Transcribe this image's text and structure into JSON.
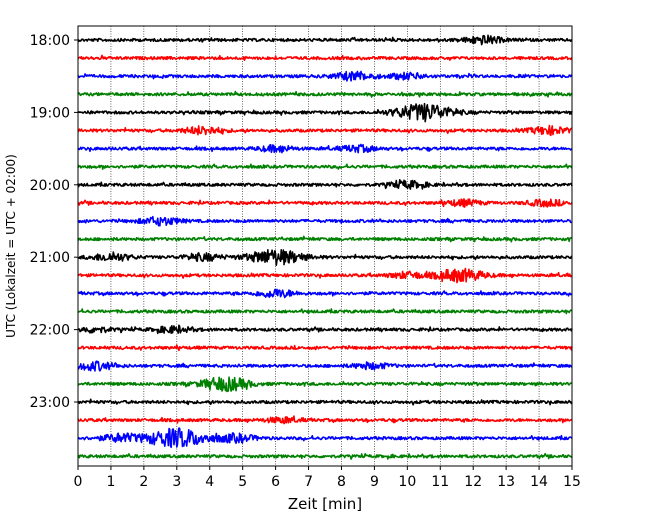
{
  "chart_data": {
    "type": "line",
    "title": "",
    "xlabel": "Zeit  [min]",
    "ylabel": "UTC (Lokalzeit = UTC + 02:00)",
    "xlim": [
      0,
      15
    ],
    "x_ticks": [
      0,
      1,
      2,
      3,
      4,
      5,
      6,
      7,
      8,
      9,
      10,
      11,
      12,
      13,
      14,
      15
    ],
    "x_tick_labels": [
      "0",
      "1",
      "2",
      "3",
      "4",
      "5",
      "6",
      "7",
      "8",
      "9",
      "10",
      "11",
      "12",
      "13",
      "14",
      "15"
    ],
    "y_tick_labels": [
      "18:00",
      "19:00",
      "20:00",
      "21:00",
      "22:00",
      "23:00"
    ],
    "grid": "vertical dotted",
    "trace_minutes": 15,
    "trace_colors": [
      "#000000",
      "#ff0000",
      "#0000ff",
      "#008000"
    ],
    "traces": [
      {
        "label": "18:00",
        "color": "#000000",
        "bursts": [
          {
            "t": 12.3,
            "amp": 0.45
          }
        ]
      },
      {
        "label": "18:15",
        "color": "#ff0000",
        "bursts": []
      },
      {
        "label": "18:30",
        "color": "#0000ff",
        "bursts": [
          {
            "t": 8.4,
            "amp": 0.5
          },
          {
            "t": 10.0,
            "amp": 0.35
          }
        ]
      },
      {
        "label": "18:45",
        "color": "#008000",
        "bursts": []
      },
      {
        "label": "19:00",
        "color": "#000000",
        "bursts": [
          {
            "t": 10.5,
            "amp": 1.0
          }
        ]
      },
      {
        "label": "19:15",
        "color": "#ff0000",
        "bursts": [
          {
            "t": 3.8,
            "amp": 0.45
          },
          {
            "t": 14.3,
            "amp": 0.45
          }
        ]
      },
      {
        "label": "19:30",
        "color": "#0000ff",
        "bursts": [
          {
            "t": 6.0,
            "amp": 0.35
          },
          {
            "t": 8.5,
            "amp": 0.35
          }
        ]
      },
      {
        "label": "19:45",
        "color": "#008000",
        "bursts": []
      },
      {
        "label": "20:00",
        "color": "#000000",
        "bursts": [
          {
            "t": 10.0,
            "amp": 0.4
          }
        ]
      },
      {
        "label": "20:15",
        "color": "#ff0000",
        "bursts": [
          {
            "t": 11.7,
            "amp": 0.35
          },
          {
            "t": 14.2,
            "amp": 0.35
          }
        ]
      },
      {
        "label": "20:30",
        "color": "#0000ff",
        "bursts": [
          {
            "t": 2.5,
            "amp": 0.45
          }
        ]
      },
      {
        "label": "20:45",
        "color": "#008000",
        "bursts": []
      },
      {
        "label": "21:00",
        "color": "#000000",
        "bursts": [
          {
            "t": 6.0,
            "amp": 0.9
          },
          {
            "t": 3.8,
            "amp": 0.4
          },
          {
            "t": 1.0,
            "amp": 0.45
          }
        ]
      },
      {
        "label": "21:15",
        "color": "#ff0000",
        "bursts": [
          {
            "t": 11.6,
            "amp": 0.75
          },
          {
            "t": 10.0,
            "amp": 0.35
          }
        ]
      },
      {
        "label": "21:30",
        "color": "#0000ff",
        "bursts": [
          {
            "t": 6.0,
            "amp": 0.45
          }
        ]
      },
      {
        "label": "21:45",
        "color": "#008000",
        "bursts": []
      },
      {
        "label": "22:00",
        "color": "#000000",
        "bursts": [
          {
            "t": 2.9,
            "amp": 0.35
          },
          {
            "t": 0.5,
            "amp": 0.3
          }
        ]
      },
      {
        "label": "22:15",
        "color": "#ff0000",
        "bursts": []
      },
      {
        "label": "22:30",
        "color": "#0000ff",
        "bursts": [
          {
            "t": 0.5,
            "amp": 0.5
          },
          {
            "t": 8.9,
            "amp": 0.35
          }
        ]
      },
      {
        "label": "22:45",
        "color": "#008000",
        "bursts": [
          {
            "t": 4.3,
            "amp": 0.6
          },
          {
            "t": 4.8,
            "amp": 0.35
          }
        ]
      },
      {
        "label": "23:00",
        "color": "#000000",
        "bursts": []
      },
      {
        "label": "23:15",
        "color": "#ff0000",
        "bursts": [
          {
            "t": 6.2,
            "amp": 0.3
          }
        ]
      },
      {
        "label": "23:30",
        "color": "#0000ff",
        "bursts": [
          {
            "t": 3.0,
            "amp": 1.1
          },
          {
            "t": 1.3,
            "amp": 0.45
          },
          {
            "t": 4.8,
            "amp": 0.45
          }
        ]
      },
      {
        "label": "23:45",
        "color": "#008000",
        "bursts": []
      }
    ]
  }
}
